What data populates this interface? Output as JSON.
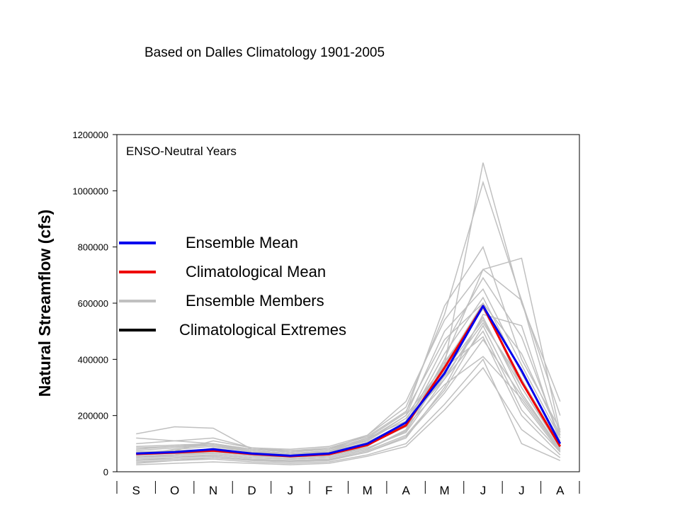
{
  "caption": "Based on Dalles Climatology 1901-2005",
  "chart_data": {
    "type": "line",
    "ylabel": "Natural Streamflow (cfs)",
    "xlabel": "",
    "annotation": "ENSO-Neutral Years",
    "categories": [
      "S",
      "O",
      "N",
      "D",
      "J",
      "F",
      "M",
      "A",
      "M",
      "J",
      "J",
      "A"
    ],
    "ylim": [
      0,
      1200000
    ],
    "yticks": [
      0,
      200000,
      400000,
      600000,
      800000,
      1000000,
      1200000
    ],
    "grid": false,
    "legend_position": "left",
    "legend": [
      {
        "label": "Ensemble Mean",
        "color": "#0000ee"
      },
      {
        "label": "Climatological Mean",
        "color": "#ee0000"
      },
      {
        "label": "Ensemble Members",
        "color": "#c0c0c0"
      },
      {
        "label": "Climatological Extremes",
        "color": "#000000"
      }
    ],
    "series": [
      {
        "name": "Ensemble Mean",
        "color": "#0000ee",
        "values": [
          65000,
          70000,
          80000,
          65000,
          57000,
          65000,
          100000,
          175000,
          350000,
          590000,
          360000,
          100000
        ]
      },
      {
        "name": "Climatological Mean",
        "color": "#ee0000",
        "values": [
          63000,
          68000,
          75000,
          63000,
          55000,
          62000,
          95000,
          165000,
          370000,
          590000,
          320000,
          90000
        ]
      }
    ],
    "members": {
      "color": "#c0c0c0",
      "values": [
        [
          135000,
          160000,
          155000,
          80000,
          70000,
          80000,
          110000,
          200000,
          380000,
          1100000,
          600000,
          250000
        ],
        [
          100000,
          110000,
          120000,
          85000,
          80000,
          90000,
          130000,
          230000,
          560000,
          1030000,
          610000,
          200000
        ],
        [
          60000,
          80000,
          90000,
          70000,
          60000,
          70000,
          120000,
          210000,
          590000,
          800000,
          400000,
          150000
        ],
        [
          40000,
          50000,
          60000,
          50000,
          45000,
          50000,
          80000,
          150000,
          400000,
          720000,
          610000,
          130000
        ],
        [
          50000,
          60000,
          70000,
          60000,
          50000,
          55000,
          90000,
          180000,
          450000,
          690000,
          480000,
          120000
        ],
        [
          80000,
          90000,
          100000,
          80000,
          70000,
          80000,
          130000,
          250000,
          540000,
          720000,
          760000,
          140000
        ],
        [
          30000,
          40000,
          50000,
          40000,
          35000,
          40000,
          70000,
          120000,
          300000,
          560000,
          520000,
          100000
        ],
        [
          70000,
          75000,
          80000,
          65000,
          60000,
          65000,
          100000,
          160000,
          380000,
          600000,
          300000,
          90000
        ],
        [
          55000,
          60000,
          65000,
          55000,
          50000,
          55000,
          85000,
          140000,
          330000,
          550000,
          280000,
          80000
        ],
        [
          45000,
          50000,
          55000,
          45000,
          40000,
          45000,
          75000,
          130000,
          290000,
          520000,
          250000,
          70000
        ],
        [
          65000,
          70000,
          75000,
          60000,
          55000,
          60000,
          95000,
          170000,
          420000,
          620000,
          350000,
          110000
        ],
        [
          90000,
          95000,
          100000,
          75000,
          65000,
          75000,
          110000,
          190000,
          370000,
          480000,
          200000,
          60000
        ],
        [
          35000,
          40000,
          45000,
          35000,
          30000,
          35000,
          60000,
          100000,
          240000,
          400000,
          100000,
          40000
        ],
        [
          25000,
          30000,
          35000,
          30000,
          25000,
          30000,
          55000,
          90000,
          220000,
          370000,
          150000,
          50000
        ],
        [
          120000,
          110000,
          100000,
          80000,
          75000,
          80000,
          120000,
          180000,
          330000,
          500000,
          220000,
          70000
        ],
        [
          75000,
          85000,
          95000,
          75000,
          65000,
          70000,
          105000,
          175000,
          390000,
          580000,
          330000,
          95000
        ],
        [
          50000,
          55000,
          60000,
          50000,
          45000,
          50000,
          80000,
          145000,
          360000,
          540000,
          300000,
          85000
        ],
        [
          60000,
          65000,
          70000,
          60000,
          55000,
          60000,
          95000,
          160000,
          310000,
          410000,
          260000,
          75000
        ],
        [
          40000,
          45000,
          50000,
          42000,
          38000,
          42000,
          70000,
          125000,
          280000,
          470000,
          270000,
          80000
        ],
        [
          85000,
          90000,
          95000,
          70000,
          65000,
          70000,
          115000,
          200000,
          500000,
          650000,
          380000,
          120000
        ],
        [
          55000,
          60000,
          85000,
          65000,
          60000,
          65000,
          100000,
          165000,
          340000,
          530000,
          320000,
          90000
        ],
        [
          70000,
          75000,
          110000,
          85000,
          75000,
          85000,
          125000,
          215000,
          470000,
          600000,
          420000,
          130000
        ]
      ]
    }
  }
}
